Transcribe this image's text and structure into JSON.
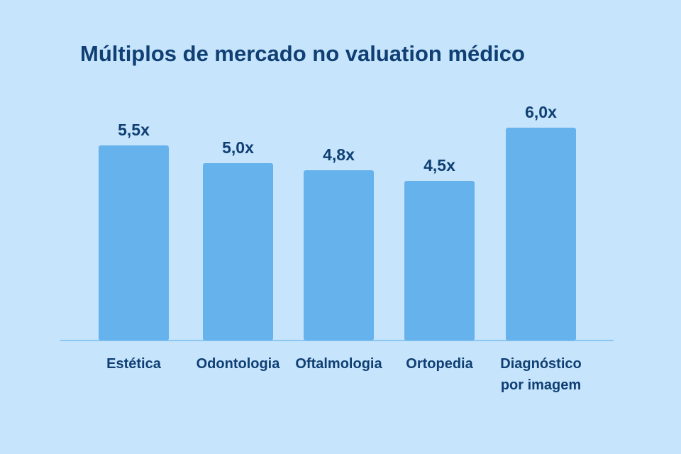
{
  "chart_data": {
    "type": "bar",
    "title": "Múltiplos de mercado no valuation médico",
    "categories": [
      "Estética",
      "Odontologia",
      "Oftalmologia",
      "Ortopedia",
      "Diagnóstico\npor imagem"
    ],
    "values": [
      5.5,
      5.0,
      4.8,
      4.5,
      6.0
    ],
    "data_labels": [
      "5,5x",
      "5,0x",
      "4,8x",
      "4,5x",
      "6,0x"
    ],
    "xlabel": "",
    "ylabel": "",
    "ylim": [
      0,
      6.5
    ],
    "grid": false,
    "legend": "none",
    "colors": {
      "bar": "#66b2ec",
      "text": "#0f3f73",
      "background": "#c6e4fc",
      "axis": "#8cc6f2"
    }
  }
}
